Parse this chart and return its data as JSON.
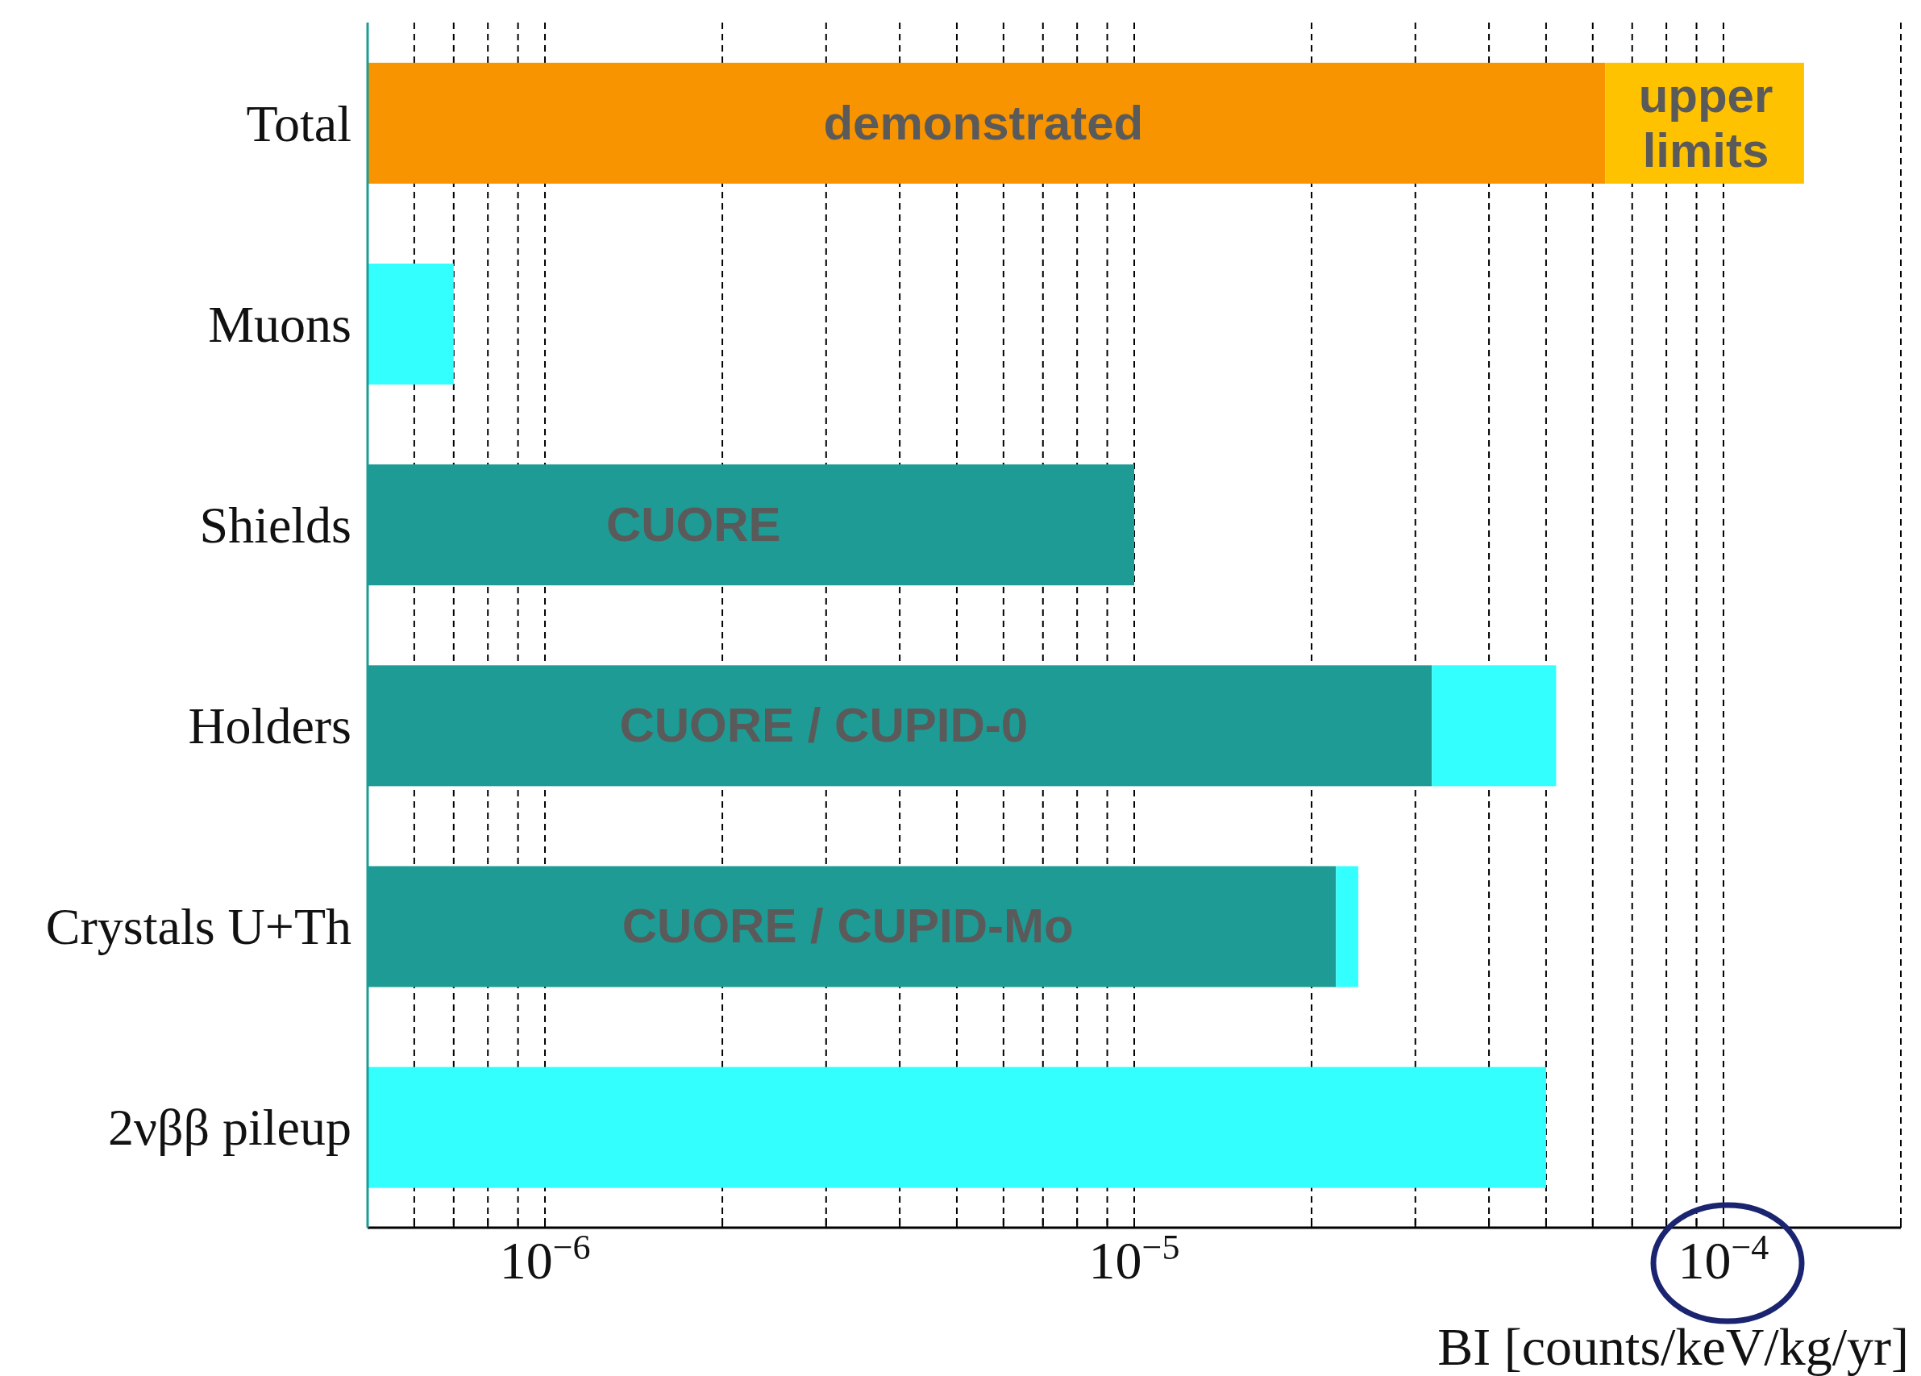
{
  "chart_data": {
    "type": "bar",
    "orientation": "horizontal",
    "stacked": true,
    "log": "x",
    "categories": [
      "Total",
      "Muons",
      "Shields",
      "Holders",
      "Crystals U+Th",
      "2νββ pileup"
    ],
    "series": [
      {
        "colors": [
          "#f79400",
          "#1e9b94",
          "#1e9b94",
          "#1e9b94",
          "#1e9b94",
          "#1e9b94"
        ],
        "values": [
          6.3e-05,
          null,
          1e-05,
          3.2e-05,
          2.2e-05,
          null
        ]
      },
      {
        "colors": [
          "#fec200",
          "#33ffff",
          "#33ffff",
          "#33ffff",
          "#33ffff",
          "#33ffff"
        ],
        "values": [
          7.4e-05,
          7e-07,
          null,
          2e-05,
          2e-06,
          5e-05
        ]
      }
    ],
    "xlim": [
      5e-07,
      0.0002
    ],
    "xticks": [
      {
        "value": 6e-07,
        "label": null
      },
      {
        "value": 7e-07,
        "label": null
      },
      {
        "value": 8e-07,
        "label": null
      },
      {
        "value": 9e-07,
        "label": null
      },
      {
        "value": 1e-06,
        "label": "10$^{−6}$"
      },
      {
        "value": 2e-06,
        "label": null
      },
      {
        "value": 3e-06,
        "label": null
      },
      {
        "value": 4e-06,
        "label": null
      },
      {
        "value": 5e-06,
        "label": null
      },
      {
        "value": 6e-06,
        "label": null
      },
      {
        "value": 7e-06,
        "label": null
      },
      {
        "value": 8e-06,
        "label": null
      },
      {
        "value": 9e-06,
        "label": null
      },
      {
        "value": 1e-05,
        "label": "10$^{−5}$"
      },
      {
        "value": 2e-05,
        "label": null
      },
      {
        "value": 3e-05,
        "label": null
      },
      {
        "value": 4e-05,
        "label": null
      },
      {
        "value": 5e-05,
        "label": null
      },
      {
        "value": 6e-05,
        "label": null
      },
      {
        "value": 7e-05,
        "label": null
      },
      {
        "value": 8e-05,
        "label": null
      },
      {
        "value": 9e-05,
        "label": null
      },
      {
        "value": 0.0001,
        "label": "10$^{−4}$"
      },
      {
        "value": 0.0002,
        "label": null
      }
    ],
    "xlabel": "BI [counts/keV/kg/yr]",
    "grid": "x",
    "annotations": [
      "demonstrated",
      "upper\nlimits",
      "CUORE",
      "CUORE / CUPID-0",
      "CUORE / CUPID-Mo"
    ]
  }
}
